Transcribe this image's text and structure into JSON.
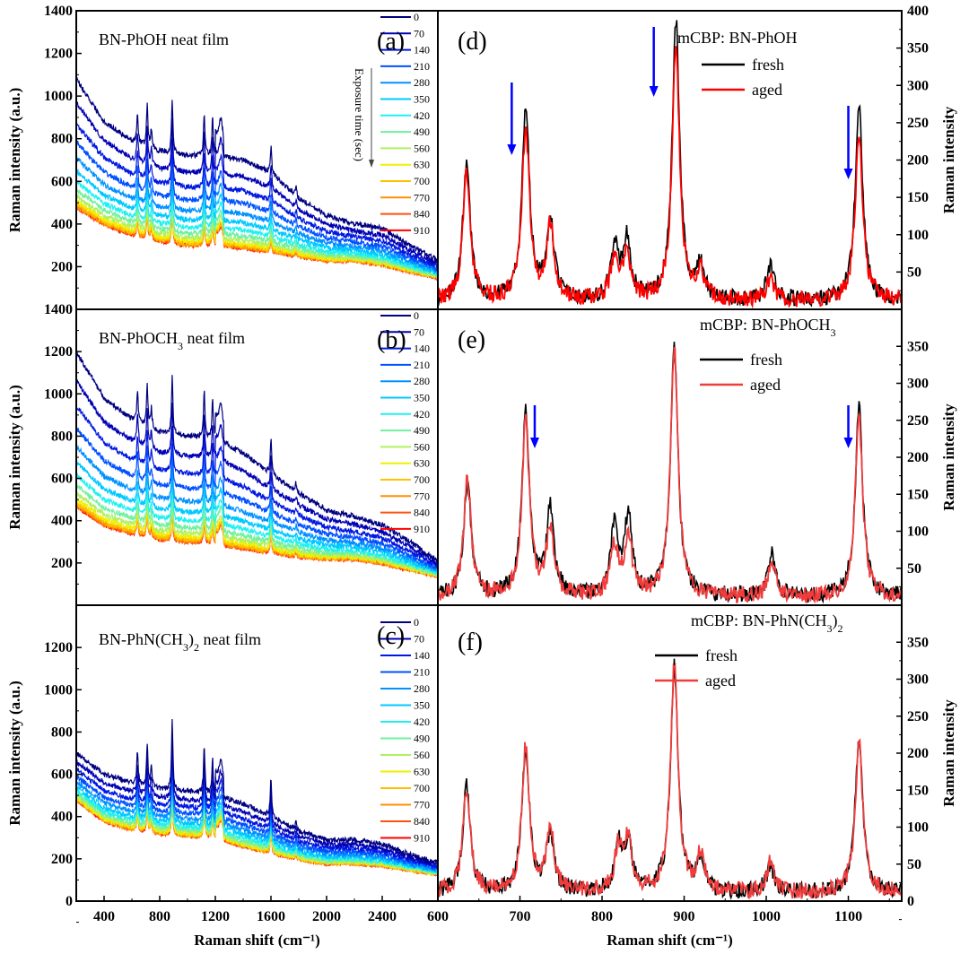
{
  "chart_data": [
    {
      "panel": "a",
      "type": "line",
      "label": "(a)",
      "title": {
        "main": "BN-PhOH neat film",
        "pre": "BN-PhOH",
        "sub": "",
        "post": " neat film"
      },
      "xlabel": "Raman shift (cm⁻¹)",
      "ylabel": "Raman intensity (a.u.)",
      "xlim": [
        200,
        2800
      ],
      "ylim": [
        0,
        1400
      ],
      "yticks": [
        200,
        400,
        600,
        800,
        1000,
        1200,
        1400
      ],
      "legend_title": "Exposure time (sec)",
      "baseline_x": [
        200,
        400,
        600,
        800,
        1000,
        1200,
        1400,
        1600,
        1800,
        2000,
        2200,
        2400,
        2600,
        2800
      ],
      "baseline_0": [
        1080,
        880,
        790,
        740,
        720,
        720,
        700,
        640,
        520,
        440,
        400,
        380,
        300,
        230
      ],
      "baseline_910": [
        480,
        400,
        350,
        320,
        300,
        300,
        290,
        270,
        250,
        230,
        230,
        210,
        180,
        150
      ],
      "peaks": [
        [
          640,
          140
        ],
        [
          710,
          200
        ],
        [
          740,
          90
        ],
        [
          890,
          260
        ],
        [
          1120,
          200
        ],
        [
          1180,
          170
        ],
        [
          1240,
          150
        ],
        [
          1600,
          120
        ],
        [
          1780,
          40
        ]
      ]
    },
    {
      "panel": "b",
      "type": "line",
      "label": "(b)",
      "title": {
        "main": "BN-PhOCH3 neat film",
        "pre": "BN-PhOCH",
        "sub": "3",
        "post": " neat film"
      },
      "xlabel": "Raman shift (cm⁻¹)",
      "ylabel": "Raman intensity (a.u.)",
      "xlim": [
        200,
        2800
      ],
      "ylim": [
        0,
        1400
      ],
      "yticks": [
        200,
        400,
        600,
        800,
        1000,
        1200,
        1400
      ],
      "baseline_x": [
        200,
        400,
        600,
        800,
        1000,
        1200,
        1400,
        1600,
        1800,
        2000,
        2200,
        2400,
        2600,
        2800
      ],
      "baseline_0": [
        1200,
        980,
        880,
        820,
        800,
        790,
        720,
        620,
        530,
        450,
        420,
        380,
        300,
        210
      ],
      "baseline_910": [
        470,
        380,
        340,
        310,
        300,
        290,
        270,
        250,
        230,
        220,
        220,
        200,
        170,
        140
      ],
      "peaks": [
        [
          640,
          150
        ],
        [
          710,
          200
        ],
        [
          740,
          90
        ],
        [
          890,
          270
        ],
        [
          1120,
          220
        ],
        [
          1180,
          180
        ],
        [
          1240,
          150
        ],
        [
          1600,
          170
        ],
        [
          1780,
          40
        ]
      ]
    },
    {
      "panel": "c",
      "type": "line",
      "label": "(c)",
      "title": {
        "main": "BN-PhN(CH3)2 neat film",
        "pre": "BN-PhN(CH",
        "sub": "3",
        "post": ")",
        "sub2": "2",
        "post2": " neat film"
      },
      "xlabel": "Raman shift (cm⁻¹)",
      "ylabel": "Raman intensity (a.u.)",
      "xlim": [
        200,
        2800
      ],
      "ylim": [
        0,
        1400
      ],
      "yticks": [
        0,
        200,
        400,
        600,
        800,
        1000,
        1200
      ],
      "xticks": [
        400,
        800,
        1200,
        1600,
        2000,
        2400
      ],
      "baseline_x": [
        200,
        400,
        600,
        800,
        1000,
        1200,
        1400,
        1600,
        1800,
        2000,
        2200,
        2400,
        2600,
        2800
      ],
      "baseline_0": [
        700,
        600,
        560,
        530,
        520,
        500,
        460,
        400,
        330,
        290,
        290,
        270,
        220,
        180
      ],
      "baseline_910": [
        480,
        380,
        340,
        320,
        310,
        300,
        260,
        230,
        200,
        180,
        180,
        170,
        150,
        130
      ],
      "peaks": [
        [
          640,
          150
        ],
        [
          710,
          200
        ],
        [
          740,
          90
        ],
        [
          890,
          330
        ],
        [
          1120,
          230
        ],
        [
          1180,
          170
        ],
        [
          1240,
          150
        ],
        [
          1600,
          180
        ],
        [
          1780,
          40
        ]
      ]
    },
    {
      "panel": "d",
      "type": "line",
      "label": "(d)",
      "title": {
        "main": "mCBP: BN-PhOH",
        "pre": "mCBP: BN-PhOH",
        "sub": "",
        "post": ""
      },
      "ylabel": "Raman intensity",
      "xlim": [
        600,
        1165
      ],
      "ylim": [
        0,
        400
      ],
      "yticks": [
        50,
        100,
        150,
        200,
        250,
        300,
        350,
        400
      ],
      "series": [
        {
          "name": "fresh",
          "color": "#000000",
          "peaks": [
            [
              635,
              185
            ],
            [
              707,
              260
            ],
            [
              737,
              105
            ],
            [
              815,
              70
            ],
            [
              830,
              80
            ],
            [
              890,
              375
            ],
            [
              920,
              45
            ],
            [
              1005,
              45
            ],
            [
              1113,
              260
            ]
          ]
        },
        {
          "name": "aged",
          "color": "#ff0000",
          "peaks": [
            [
              635,
              172
            ],
            [
              707,
              232
            ],
            [
              737,
              100
            ],
            [
              815,
              55
            ],
            [
              830,
              58
            ],
            [
              890,
              338
            ],
            [
              920,
              38
            ],
            [
              1005,
              30
            ],
            [
              1113,
              225
            ]
          ]
        }
      ],
      "arrows": [
        690,
        863,
        1100
      ]
    },
    {
      "panel": "e",
      "type": "line",
      "label": "(e)",
      "title": {
        "main": "mCBP: BN-PhOCH3",
        "pre": "mCBP: BN-PhOCH",
        "sub": "3",
        "post": ""
      },
      "ylabel": "Raman intensity",
      "xlim": [
        600,
        1165
      ],
      "ylim": [
        0,
        400
      ],
      "yticks": [
        50,
        100,
        150,
        200,
        250,
        300,
        350
      ],
      "series": [
        {
          "name": "fresh",
          "color": "#000000",
          "peaks": [
            [
              636,
              150
            ],
            [
              707,
              250
            ],
            [
              737,
              115
            ],
            [
              815,
              95
            ],
            [
              832,
              105
            ],
            [
              888,
              335
            ],
            [
              1007,
              60
            ],
            [
              1113,
              255
            ]
          ]
        },
        {
          "name": "aged",
          "color": "#f03c3c",
          "peaks": [
            [
              636,
              158
            ],
            [
              707,
              235
            ],
            [
              737,
              92
            ],
            [
              815,
              68
            ],
            [
              832,
              78
            ],
            [
              888,
              335
            ],
            [
              1007,
              45
            ],
            [
              1113,
              240
            ]
          ]
        }
      ],
      "arrows": [
        718,
        1100
      ]
    },
    {
      "panel": "f",
      "type": "line",
      "label": "(f)",
      "title": {
        "main": "mCBP: BN-PhN(CH3)2",
        "pre": "mCBP: BN-PhN(CH",
        "sub": "3",
        "post": ")",
        "sub2": "2",
        "post2": ""
      },
      "xlabel": "Raman shift (cm⁻¹)",
      "ylabel": "Raman intensity",
      "xlim": [
        600,
        1165
      ],
      "ylim": [
        0,
        400
      ],
      "yticks": [
        0,
        50,
        100,
        150,
        200,
        250,
        300,
        350
      ],
      "xticks": [
        600,
        700,
        800,
        900,
        1000,
        1100
      ],
      "series": [
        {
          "name": "fresh",
          "color": "#000000",
          "peaks": [
            [
              635,
              145
            ],
            [
              707,
              192
            ],
            [
              737,
              78
            ],
            [
              820,
              60
            ],
            [
              832,
              65
            ],
            [
              888,
              305
            ],
            [
              920,
              45
            ],
            [
              1005,
              35
            ],
            [
              1113,
              210
            ]
          ]
        },
        {
          "name": "aged",
          "color": "#f03c3c",
          "peaks": [
            [
              635,
              142
            ],
            [
              707,
              195
            ],
            [
              737,
              85
            ],
            [
              820,
              58
            ],
            [
              832,
              70
            ],
            [
              888,
              305
            ],
            [
              920,
              50
            ],
            [
              1005,
              40
            ],
            [
              1113,
              205
            ]
          ]
        }
      ],
      "arrows": []
    }
  ],
  "exposure_series": [
    {
      "name": "0",
      "color": "#000080"
    },
    {
      "name": "70",
      "color": "#0000b4"
    },
    {
      "name": "140",
      "color": "#0018e0"
    },
    {
      "name": "210",
      "color": "#0050ff"
    },
    {
      "name": "280",
      "color": "#0090ff"
    },
    {
      "name": "350",
      "color": "#00c8ff"
    },
    {
      "name": "420",
      "color": "#20f0f0"
    },
    {
      "name": "490",
      "color": "#70f0a0"
    },
    {
      "name": "560",
      "color": "#b0f060"
    },
    {
      "name": "630",
      "color": "#f0f000"
    },
    {
      "name": "700",
      "color": "#ffc000"
    },
    {
      "name": "770",
      "color": "#ff9000"
    },
    {
      "name": "840",
      "color": "#ff5010"
    },
    {
      "name": "910",
      "color": "#ff0000"
    }
  ],
  "arrow_color": "#0000ff"
}
